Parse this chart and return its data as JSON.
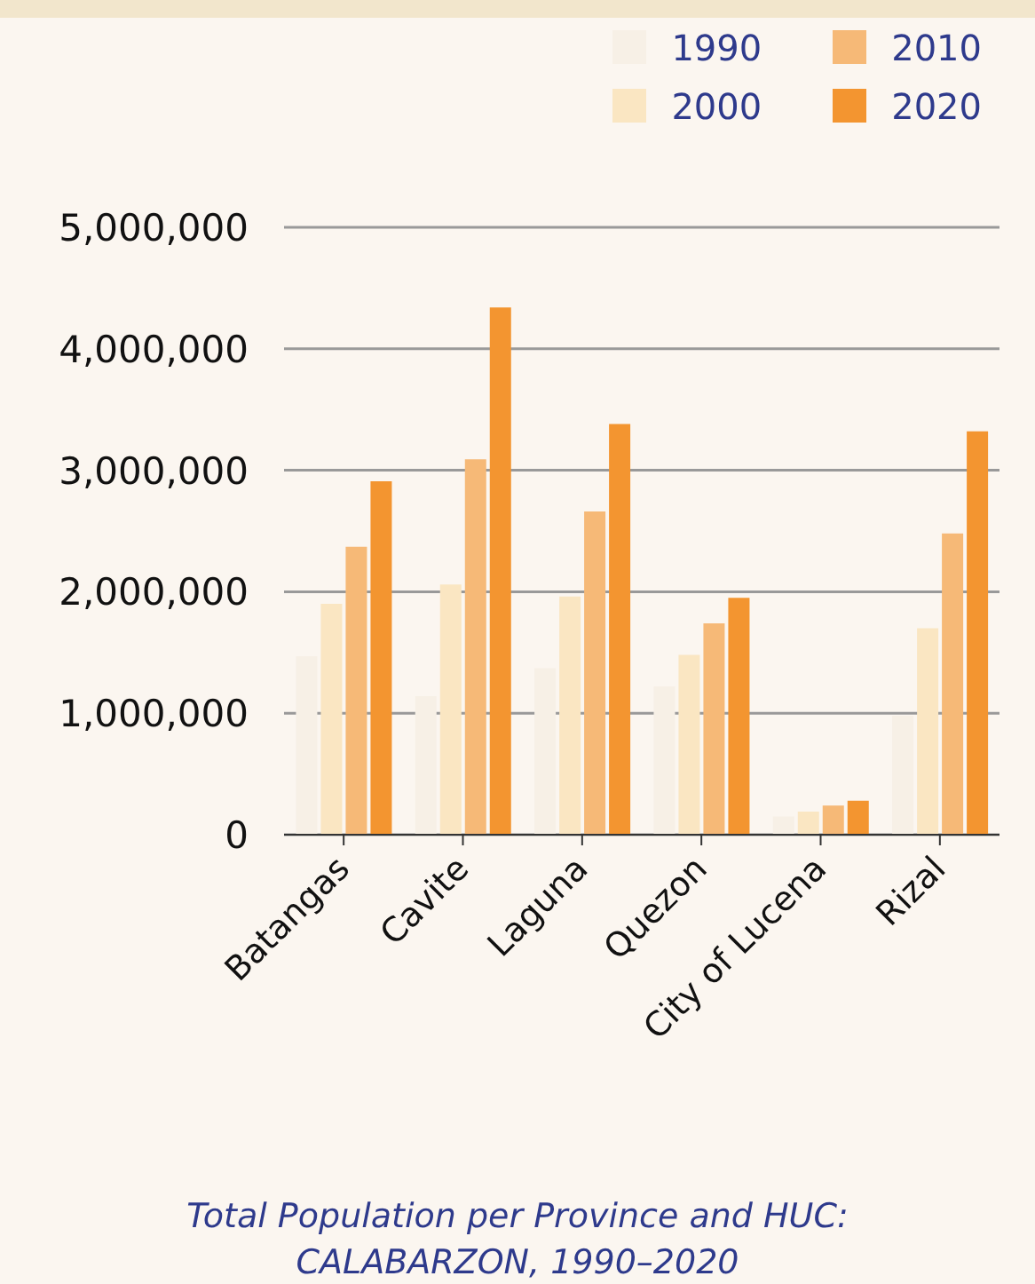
{
  "chart_data": {
    "type": "bar",
    "title": "Total Population per Province and HUC: CALABARZON, 1990–2020",
    "categories": [
      "Batangas",
      "Cavite",
      "Laguna",
      "Quezon",
      "City of Lucena",
      "Rizal"
    ],
    "series": [
      {
        "name": "1990",
        "color": "#f7f0e6",
        "values": [
          1470000,
          1140000,
          1370000,
          1220000,
          150000,
          980000
        ]
      },
      {
        "name": "2000",
        "color": "#fae6c2",
        "values": [
          1900000,
          2060000,
          1960000,
          1480000,
          190000,
          1700000
        ]
      },
      {
        "name": "2010",
        "color": "#f6b977",
        "values": [
          2370000,
          3090000,
          2660000,
          1740000,
          240000,
          2480000
        ]
      },
      {
        "name": "2020",
        "color": "#f39530",
        "values": [
          2910000,
          4340000,
          3380000,
          1950000,
          280000,
          3320000
        ]
      }
    ],
    "ylim": [
      0,
      5000000
    ],
    "yticks": [
      0,
      {
        "value": 1000000,
        "label": "1,000,000"
      },
      {
        "value": 2000000,
        "label": "2,000,000"
      },
      {
        "value": 3000000,
        "label": "3,000,000"
      },
      {
        "value": 4000000,
        "label": "4,000,000"
      },
      {
        "value": 5000000,
        "label": "5,000,000"
      }
    ],
    "grid": "y",
    "legend": "top right"
  }
}
